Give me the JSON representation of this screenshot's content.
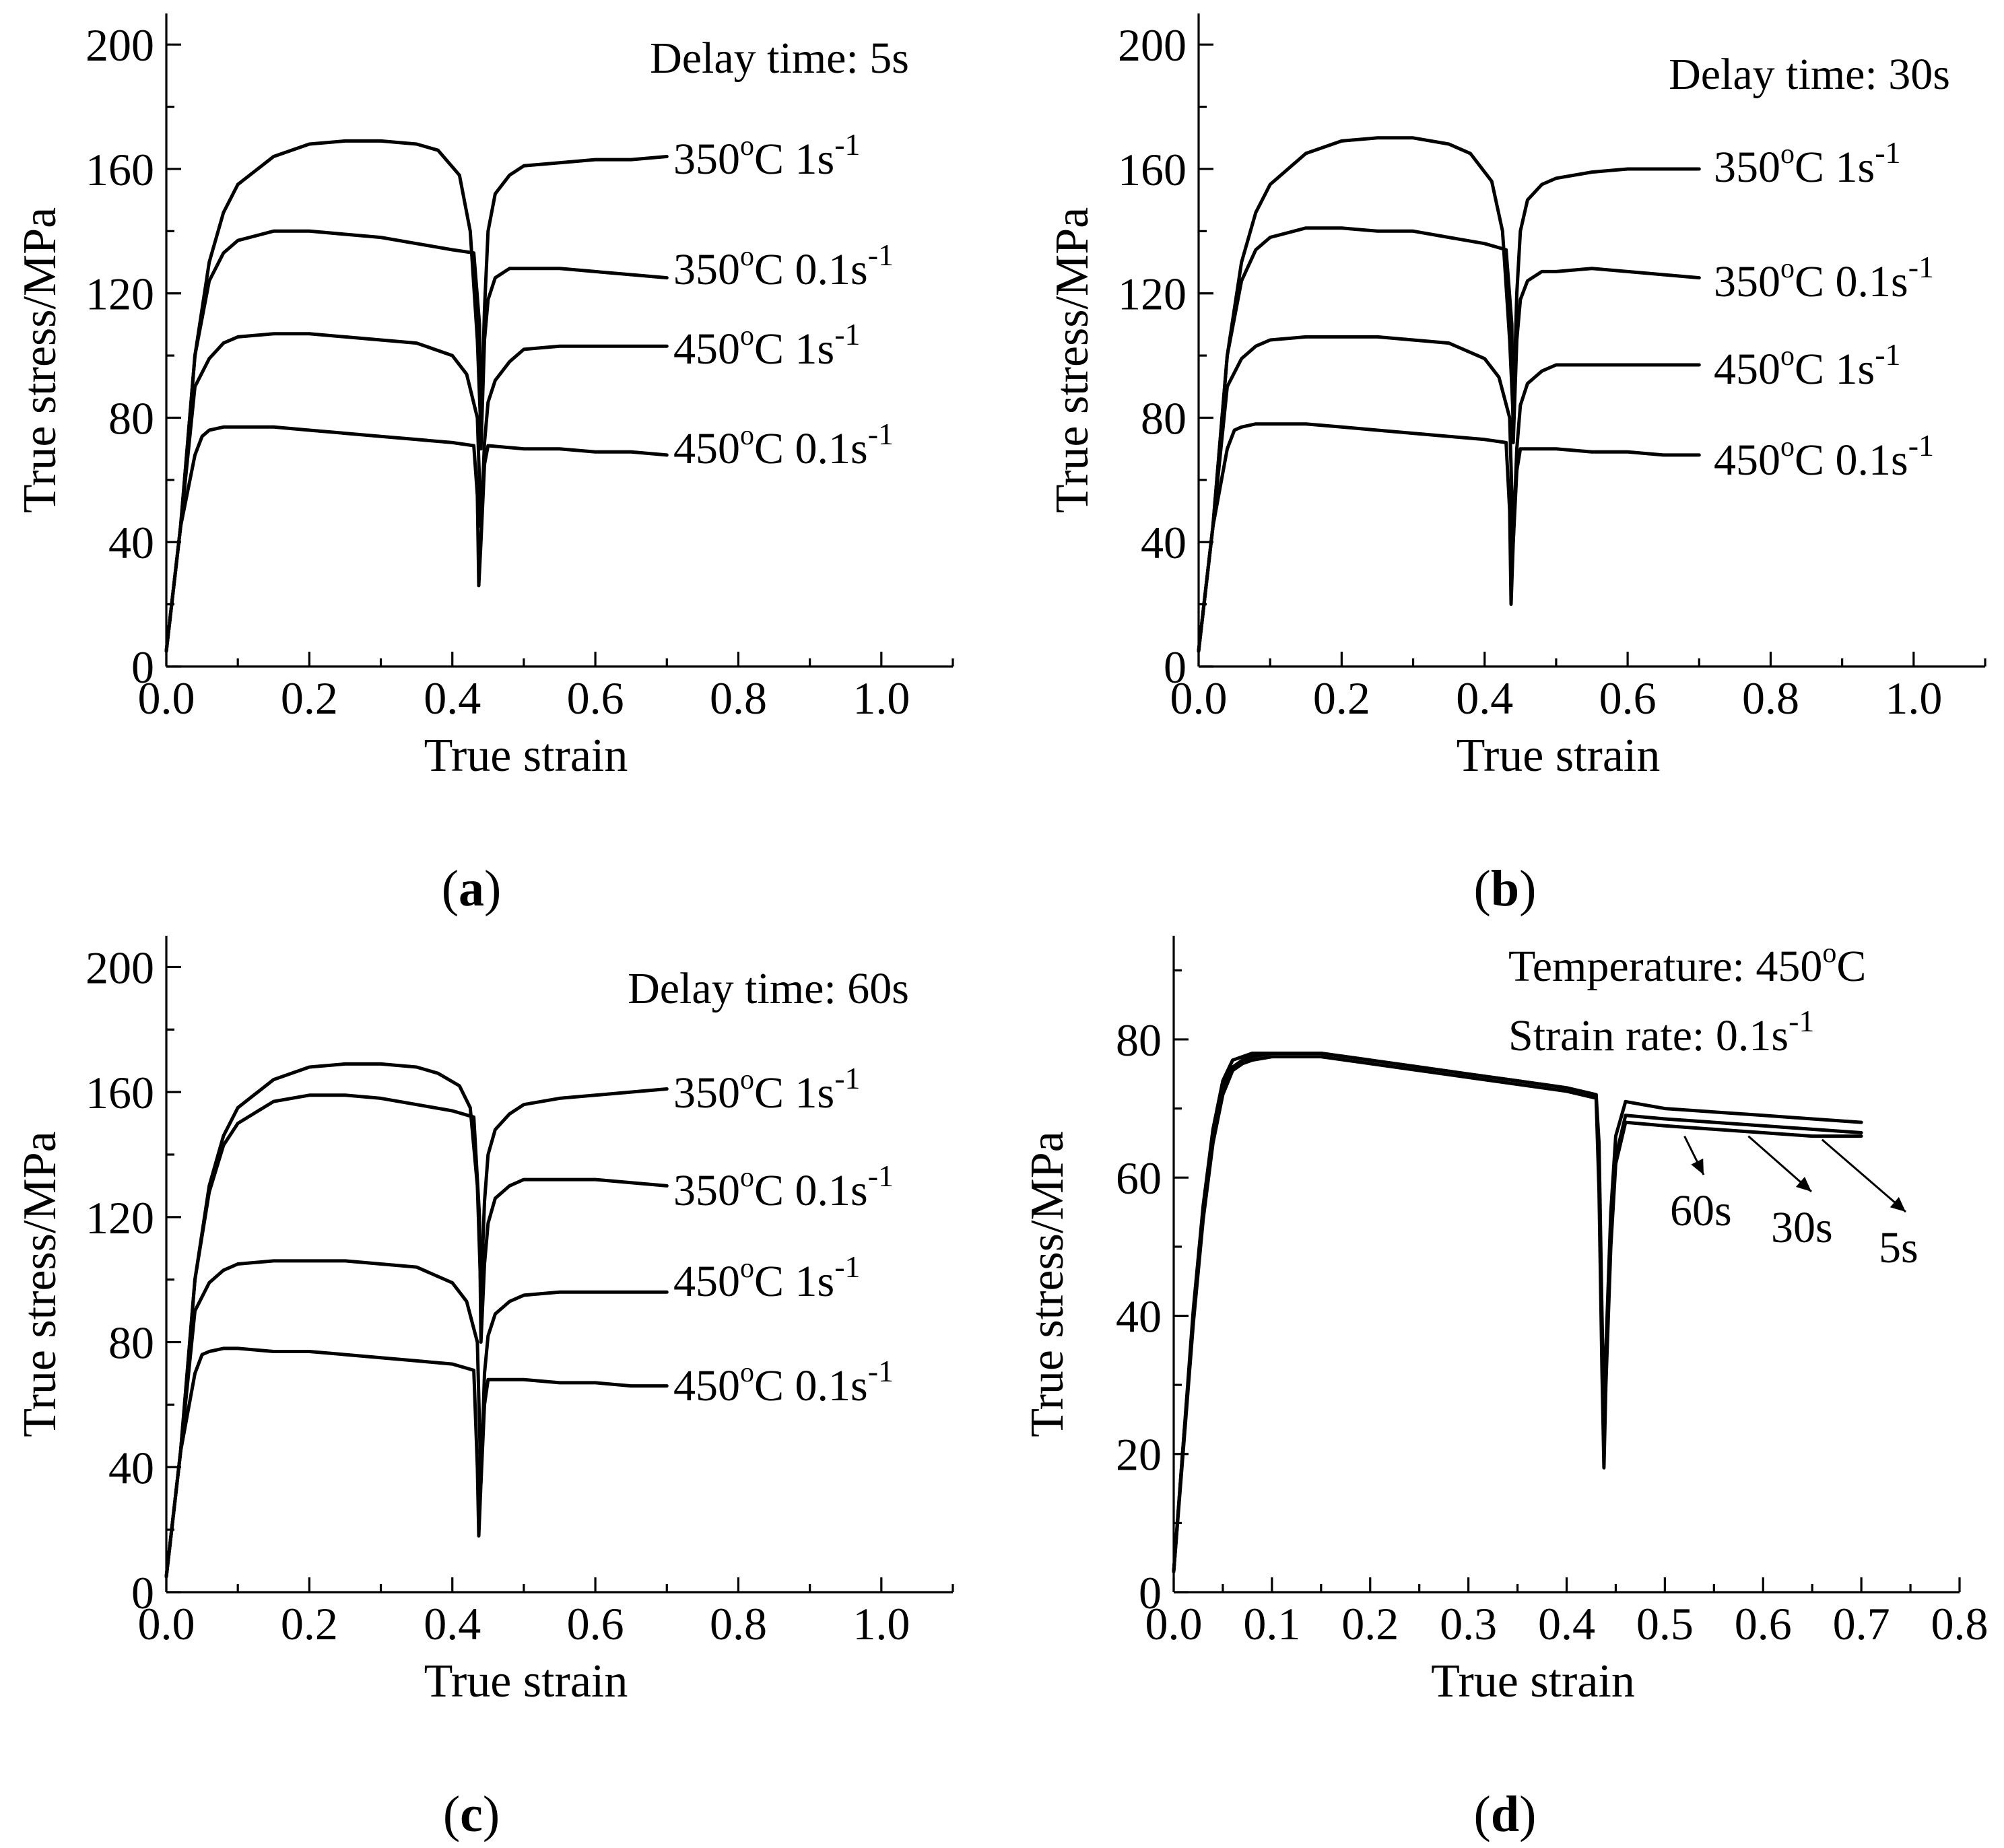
{
  "chart_data": [
    {
      "type": "line",
      "panel_label": "a",
      "annotation": "Delay time: 5s",
      "xlabel": "True strain",
      "ylabel": "True stress/MPa",
      "xlim": [
        0,
        1.1
      ],
      "ylim": [
        0,
        210
      ],
      "xticks": [
        "0.0",
        "0.2",
        "0.4",
        "0.6",
        "0.8",
        "1.0"
      ],
      "yticks": [
        "0",
        "40",
        "80",
        "120",
        "160",
        "200"
      ],
      "series": [
        {
          "name": "350°C 1s-1",
          "label_main": "350",
          "label_sup1": "o",
          "label_mid": "C 1s",
          "label_sup2": "-1",
          "x": [
            0,
            0.02,
            0.04,
            0.06,
            0.08,
            0.1,
            0.15,
            0.2,
            0.25,
            0.3,
            0.35,
            0.38,
            0.41,
            0.425,
            0.435,
            0.44,
            0.445,
            0.45,
            0.46,
            0.48,
            0.5,
            0.55,
            0.6,
            0.65,
            0.7
          ],
          "y": [
            5,
            45,
            100,
            130,
            146,
            155,
            164,
            168,
            169,
            169,
            168,
            166,
            158,
            140,
            105,
            75,
            115,
            140,
            152,
            158,
            161,
            162,
            163,
            163,
            164
          ]
        },
        {
          "name": "350°C 0.1s-1",
          "label_main": "350",
          "label_sup1": "o",
          "label_mid": "C 0.1s",
          "label_sup2": "-1",
          "x": [
            0,
            0.02,
            0.04,
            0.06,
            0.08,
            0.1,
            0.15,
            0.2,
            0.25,
            0.3,
            0.35,
            0.4,
            0.43,
            0.438,
            0.44,
            0.445,
            0.45,
            0.46,
            0.48,
            0.5,
            0.55,
            0.6,
            0.65,
            0.7
          ],
          "y": [
            5,
            45,
            100,
            124,
            133,
            137,
            140,
            140,
            139,
            138,
            136,
            134,
            133,
            110,
            70,
            105,
            118,
            125,
            128,
            128,
            128,
            127,
            126,
            125
          ]
        },
        {
          "name": "450°C 1s-1",
          "label_main": "450",
          "label_sup1": "o",
          "label_mid": "C 1s",
          "label_sup2": "-1",
          "x": [
            0,
            0.02,
            0.04,
            0.06,
            0.08,
            0.1,
            0.15,
            0.2,
            0.25,
            0.3,
            0.35,
            0.4,
            0.42,
            0.435,
            0.44,
            0.445,
            0.45,
            0.46,
            0.48,
            0.5,
            0.55,
            0.6,
            0.65,
            0.7
          ],
          "y": [
            5,
            45,
            90,
            99,
            104,
            106,
            107,
            107,
            106,
            105,
            104,
            100,
            94,
            80,
            45,
            72,
            85,
            92,
            98,
            102,
            103,
            103,
            103,
            103
          ]
        },
        {
          "name": "450°C 0.1s-1",
          "label_main": "450",
          "label_sup1": "o",
          "label_mid": "C 0.1s",
          "label_sup2": "-1",
          "x": [
            0,
            0.02,
            0.04,
            0.05,
            0.06,
            0.08,
            0.1,
            0.15,
            0.2,
            0.25,
            0.3,
            0.35,
            0.4,
            0.43,
            0.435,
            0.437,
            0.44,
            0.445,
            0.45,
            0.5,
            0.55,
            0.6,
            0.65,
            0.7
          ],
          "y": [
            5,
            45,
            68,
            74,
            76,
            77,
            77,
            77,
            76,
            75,
            74,
            73,
            72,
            71,
            55,
            26,
            40,
            65,
            71,
            70,
            70,
            69,
            69,
            68
          ]
        }
      ]
    },
    {
      "type": "line",
      "panel_label": "b",
      "annotation": "Delay time: 30s",
      "xlabel": "True strain",
      "ylabel": "True stress/MPa",
      "xlim": [
        0,
        1.1
      ],
      "ylim": [
        0,
        210
      ],
      "xticks": [
        "0.0",
        "0.2",
        "0.4",
        "0.6",
        "0.8",
        "1.0"
      ],
      "yticks": [
        "0",
        "40",
        "80",
        "120",
        "160",
        "200"
      ],
      "series": [
        {
          "name": "350°C 1s-1",
          "label_main": "350",
          "label_sup1": "o",
          "label_mid": "C 1s",
          "label_sup2": "-1",
          "x": [
            0,
            0.02,
            0.04,
            0.06,
            0.08,
            0.1,
            0.15,
            0.2,
            0.25,
            0.3,
            0.35,
            0.38,
            0.41,
            0.425,
            0.435,
            0.44,
            0.445,
            0.45,
            0.46,
            0.48,
            0.5,
            0.55,
            0.6,
            0.65,
            0.7
          ],
          "y": [
            5,
            45,
            100,
            130,
            146,
            155,
            165,
            169,
            170,
            170,
            168,
            165,
            156,
            140,
            105,
            80,
            120,
            140,
            150,
            155,
            157,
            159,
            160,
            160,
            160
          ]
        },
        {
          "name": "350°C 0.1s-1",
          "label_main": "350",
          "label_sup1": "o",
          "label_mid": "C 0.1s",
          "label_sup2": "-1",
          "x": [
            0,
            0.02,
            0.04,
            0.06,
            0.08,
            0.1,
            0.15,
            0.2,
            0.25,
            0.3,
            0.35,
            0.4,
            0.43,
            0.438,
            0.44,
            0.445,
            0.45,
            0.46,
            0.48,
            0.5,
            0.55,
            0.6,
            0.65,
            0.7
          ],
          "y": [
            5,
            45,
            100,
            124,
            134,
            138,
            141,
            141,
            140,
            140,
            138,
            136,
            134,
            110,
            72,
            105,
            118,
            124,
            127,
            127,
            128,
            127,
            126,
            125
          ]
        },
        {
          "name": "450°C 1s-1",
          "label_main": "450",
          "label_sup1": "o",
          "label_mid": "C 1s",
          "label_sup2": "-1",
          "x": [
            0,
            0.02,
            0.04,
            0.06,
            0.08,
            0.1,
            0.15,
            0.2,
            0.25,
            0.3,
            0.35,
            0.4,
            0.42,
            0.435,
            0.44,
            0.445,
            0.45,
            0.46,
            0.48,
            0.5,
            0.55,
            0.6,
            0.65,
            0.7
          ],
          "y": [
            5,
            45,
            90,
            99,
            103,
            105,
            106,
            106,
            106,
            105,
            104,
            99,
            93,
            80,
            40,
            70,
            84,
            91,
            95,
            97,
            97,
            97,
            97,
            97
          ]
        },
        {
          "name": "450°C 0.1s-1",
          "label_main": "450",
          "label_sup1": "o",
          "label_mid": "C 0.1s",
          "label_sup2": "-1",
          "x": [
            0,
            0.02,
            0.04,
            0.05,
            0.06,
            0.08,
            0.1,
            0.15,
            0.2,
            0.25,
            0.3,
            0.35,
            0.4,
            0.43,
            0.435,
            0.437,
            0.44,
            0.445,
            0.45,
            0.5,
            0.55,
            0.6,
            0.65,
            0.7
          ],
          "y": [
            5,
            45,
            70,
            76,
            77,
            78,
            78,
            78,
            77,
            76,
            75,
            74,
            73,
            72,
            50,
            20,
            40,
            63,
            70,
            70,
            69,
            69,
            68,
            68
          ]
        }
      ]
    },
    {
      "type": "line",
      "panel_label": "c",
      "annotation": "Delay time: 60s",
      "xlabel": "True strain",
      "ylabel": "True stress/MPa",
      "xlim": [
        0,
        1.1
      ],
      "ylim": [
        0,
        210
      ],
      "xticks": [
        "0.0",
        "0.2",
        "0.4",
        "0.6",
        "0.8",
        "1.0"
      ],
      "yticks": [
        "0",
        "40",
        "80",
        "120",
        "160",
        "200"
      ],
      "series": [
        {
          "name": "350°C 1s-1",
          "label_main": "350",
          "label_sup1": "o",
          "label_mid": "C 1s",
          "label_sup2": "-1",
          "x": [
            0,
            0.02,
            0.04,
            0.06,
            0.08,
            0.1,
            0.15,
            0.2,
            0.25,
            0.3,
            0.35,
            0.38,
            0.41,
            0.425,
            0.435,
            0.44,
            0.445,
            0.45,
            0.46,
            0.48,
            0.5,
            0.55,
            0.6,
            0.65,
            0.7
          ],
          "y": [
            5,
            45,
            100,
            130,
            146,
            155,
            164,
            168,
            169,
            169,
            168,
            166,
            162,
            155,
            130,
            95,
            125,
            140,
            148,
            153,
            156,
            158,
            159,
            160,
            161
          ]
        },
        {
          "name": "350°C 0.1s-1",
          "label_main": "350",
          "label_sup1": "o",
          "label_mid": "C 0.1s",
          "label_sup2": "-1",
          "x": [
            0,
            0.02,
            0.04,
            0.06,
            0.08,
            0.1,
            0.15,
            0.2,
            0.25,
            0.3,
            0.35,
            0.4,
            0.43,
            0.438,
            0.44,
            0.445,
            0.45,
            0.46,
            0.48,
            0.5,
            0.55,
            0.6,
            0.65,
            0.7
          ],
          "y": [
            5,
            45,
            100,
            128,
            143,
            150,
            157,
            159,
            159,
            158,
            156,
            154,
            152,
            120,
            80,
            105,
            118,
            126,
            130,
            132,
            132,
            132,
            131,
            130
          ]
        },
        {
          "name": "450°C 1s-1",
          "label_main": "450",
          "label_sup1": "o",
          "label_mid": "C 1s",
          "label_sup2": "-1",
          "x": [
            0,
            0.02,
            0.04,
            0.06,
            0.08,
            0.1,
            0.15,
            0.2,
            0.25,
            0.3,
            0.35,
            0.4,
            0.42,
            0.435,
            0.44,
            0.445,
            0.45,
            0.46,
            0.48,
            0.5,
            0.55,
            0.6,
            0.65,
            0.7
          ],
          "y": [
            5,
            45,
            90,
            99,
            103,
            105,
            106,
            106,
            106,
            105,
            104,
            99,
            93,
            80,
            35,
            70,
            82,
            89,
            93,
            95,
            96,
            96,
            96,
            96
          ]
        },
        {
          "name": "450°C 0.1s-1",
          "label_main": "450",
          "label_sup1": "o",
          "label_mid": "C 0.1s",
          "label_sup2": "-1",
          "x": [
            0,
            0.02,
            0.04,
            0.05,
            0.06,
            0.08,
            0.1,
            0.15,
            0.2,
            0.25,
            0.3,
            0.35,
            0.4,
            0.43,
            0.435,
            0.437,
            0.44,
            0.445,
            0.45,
            0.5,
            0.55,
            0.6,
            0.65,
            0.7
          ],
          "y": [
            5,
            45,
            70,
            76,
            77,
            78,
            78,
            77,
            77,
            76,
            75,
            74,
            73,
            71,
            40,
            18,
            35,
            60,
            68,
            68,
            67,
            67,
            66,
            66
          ]
        }
      ]
    },
    {
      "type": "line",
      "panel_label": "d",
      "annotation_line1_main": "Temperature: 450",
      "annotation_line1_sup": "o",
      "annotation_line1_end": "C",
      "annotation_line2_main": "Strain rate: 0.1s",
      "annotation_line2_sup": "-1",
      "xlabel": "True strain",
      "ylabel": "True stress/MPa",
      "xlim": [
        0,
        0.8
      ],
      "ylim": [
        0,
        95
      ],
      "xticks": [
        "0.0",
        "0.1",
        "0.2",
        "0.3",
        "0.4",
        "0.5",
        "0.6",
        "0.7",
        "0.8"
      ],
      "yticks": [
        "0",
        "20",
        "40",
        "60",
        "80"
      ],
      "series": [
        {
          "name": "5s",
          "arrow_label": "5s",
          "x": [
            0,
            0.01,
            0.02,
            0.03,
            0.04,
            0.05,
            0.06,
            0.07,
            0.08,
            0.1,
            0.15,
            0.2,
            0.25,
            0.3,
            0.35,
            0.4,
            0.43,
            0.433,
            0.436,
            0.438,
            0.44,
            0.445,
            0.45,
            0.46,
            0.5,
            0.55,
            0.6,
            0.65,
            0.7
          ],
          "y": [
            3,
            22,
            40,
            55,
            66,
            73,
            76,
            77,
            77.5,
            78,
            78,
            77,
            76,
            75,
            74,
            73,
            72,
            65,
            40,
            26,
            35,
            55,
            66,
            71,
            70,
            69.5,
            69,
            68.5,
            68
          ]
        },
        {
          "name": "30s",
          "arrow_label": "30s",
          "x": [
            0,
            0.01,
            0.02,
            0.03,
            0.04,
            0.05,
            0.06,
            0.07,
            0.08,
            0.1,
            0.15,
            0.2,
            0.25,
            0.3,
            0.35,
            0.4,
            0.43,
            0.433,
            0.436,
            0.438,
            0.44,
            0.445,
            0.45,
            0.46,
            0.5,
            0.55,
            0.6,
            0.65,
            0.7
          ],
          "y": [
            3,
            22,
            41,
            56,
            67,
            74,
            77,
            77.5,
            78,
            78,
            78,
            77,
            76,
            75,
            74,
            73,
            72,
            60,
            35,
            20,
            32,
            52,
            63,
            69,
            68.5,
            68,
            67.5,
            67,
            66.5
          ]
        },
        {
          "name": "60s",
          "arrow_label": "60s",
          "x": [
            0,
            0.01,
            0.02,
            0.03,
            0.04,
            0.05,
            0.06,
            0.07,
            0.08,
            0.1,
            0.15,
            0.2,
            0.25,
            0.3,
            0.35,
            0.4,
            0.43,
            0.433,
            0.436,
            0.438,
            0.44,
            0.445,
            0.45,
            0.46,
            0.5,
            0.55,
            0.6,
            0.65,
            0.7
          ],
          "y": [
            3,
            21,
            39,
            54,
            65,
            72,
            75.5,
            76.5,
            77,
            77.5,
            77.5,
            76.5,
            75.5,
            74.5,
            73.5,
            72.5,
            71.5,
            58,
            32,
            18,
            30,
            50,
            62,
            68,
            67.5,
            67,
            66.5,
            66,
            66
          ]
        }
      ]
    }
  ]
}
